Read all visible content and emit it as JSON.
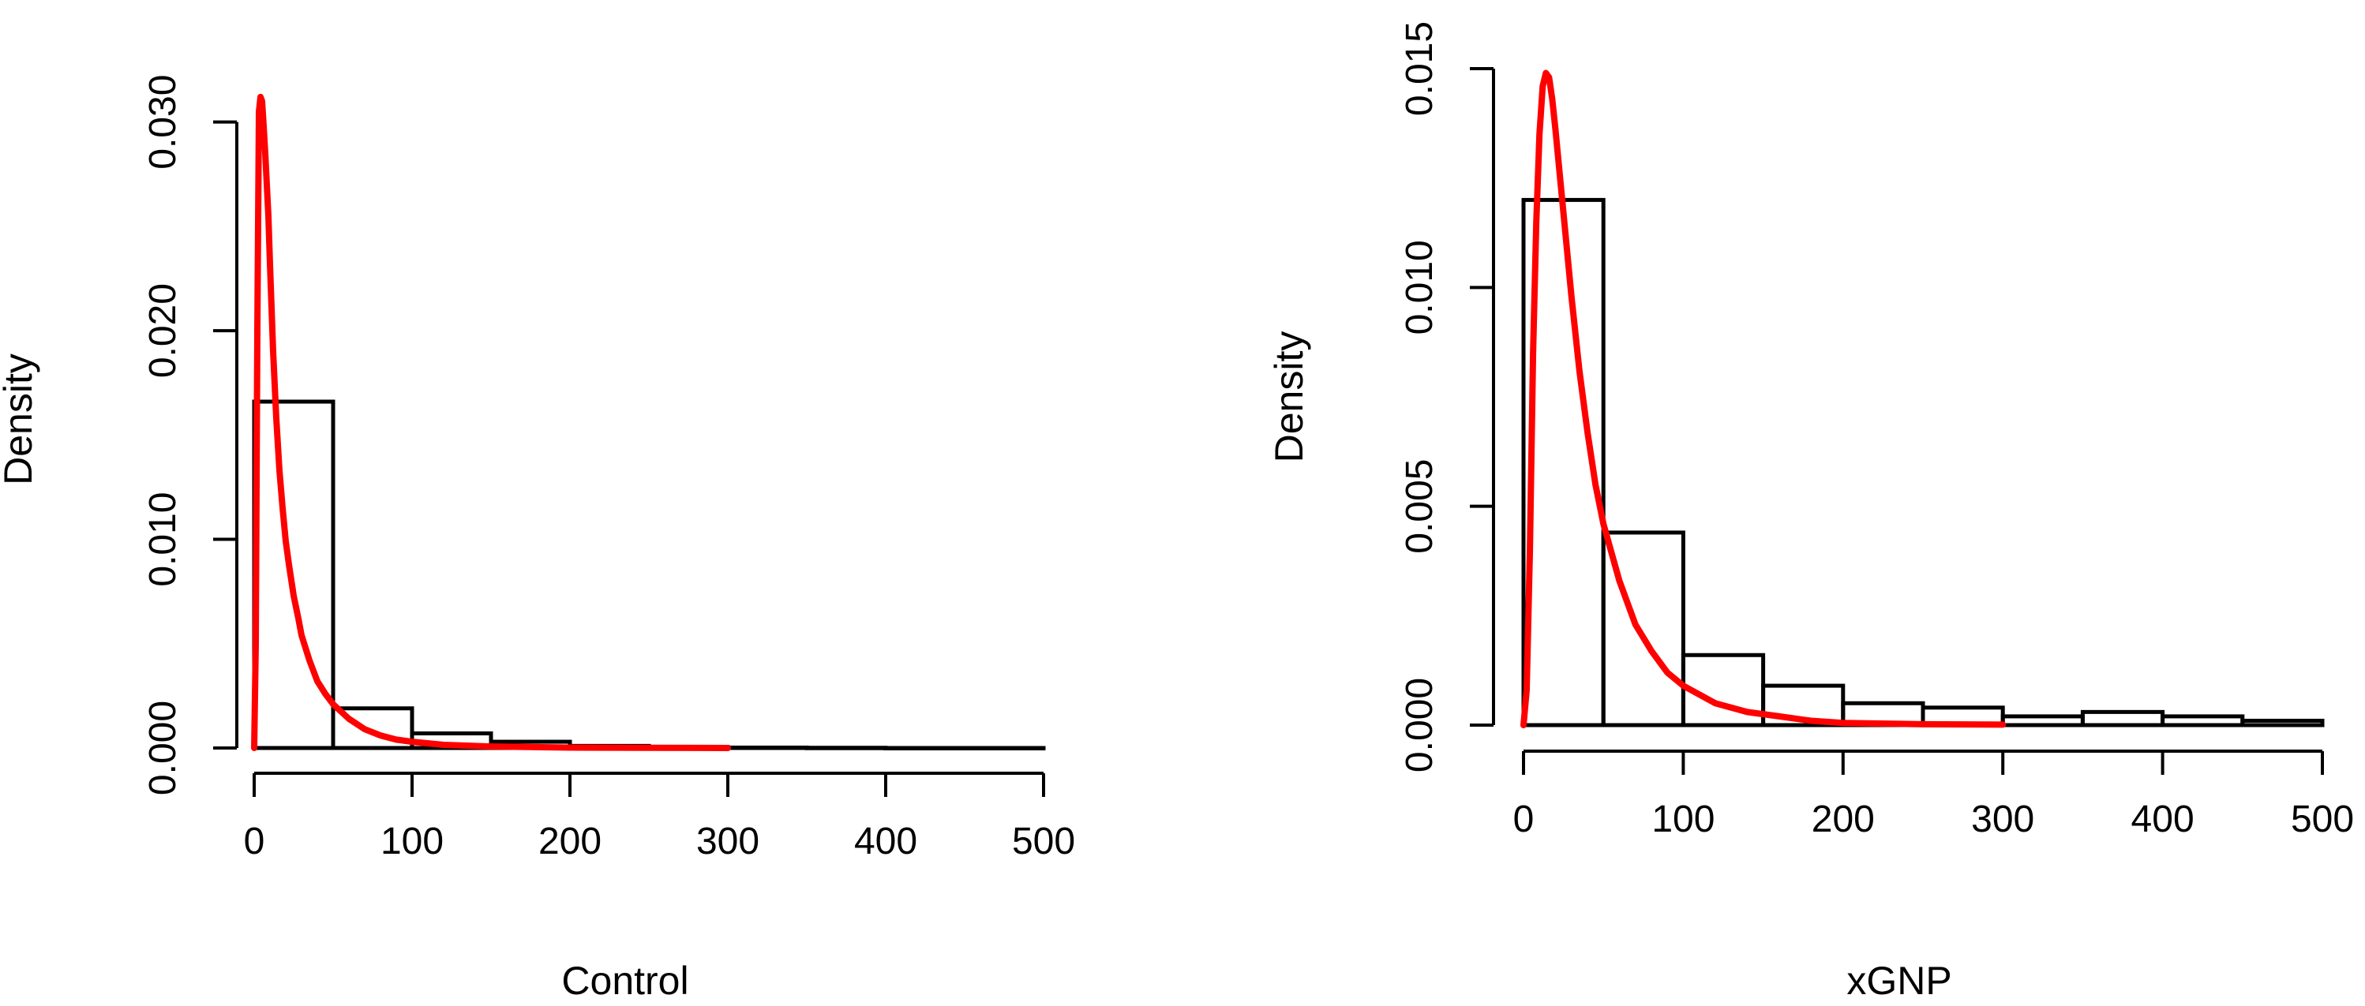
{
  "chart_data": [
    {
      "type": "bar",
      "xlabel": "Control",
      "ylabel": "Density",
      "xlim": [
        0,
        500
      ],
      "ylim": [
        0,
        0.0315
      ],
      "x_ticks": [
        0,
        100,
        200,
        300,
        400,
        500
      ],
      "x_tick_labels": [
        "0",
        "100",
        "200",
        "300",
        "400",
        "500"
      ],
      "y_ticks": [
        0,
        0.01,
        0.02,
        0.03
      ],
      "y_tick_labels": [
        "0.000",
        "0.010",
        "0.020",
        "0.030"
      ],
      "grid": false,
      "bins": [
        {
          "start": 0,
          "end": 50,
          "density": 0.0166
        },
        {
          "start": 50,
          "end": 100,
          "density": 0.0019
        },
        {
          "start": 100,
          "end": 150,
          "density": 0.0007
        },
        {
          "start": 150,
          "end": 200,
          "density": 0.0003
        },
        {
          "start": 200,
          "end": 250,
          "density": 0.0001
        },
        {
          "start": 250,
          "end": 300,
          "density": 5e-05
        },
        {
          "start": 300,
          "end": 350,
          "density": 2e-05
        },
        {
          "start": 350,
          "end": 400,
          "density": 1e-05
        },
        {
          "start": 400,
          "end": 450,
          "density": 0.0
        },
        {
          "start": 450,
          "end": 500,
          "density": 0.0
        }
      ],
      "curve_color": "#ff0000",
      "curve": [
        [
          0,
          0
        ],
        [
          1,
          0.005
        ],
        [
          2,
          0.02
        ],
        [
          3,
          0.0305
        ],
        [
          4,
          0.0312
        ],
        [
          5,
          0.031
        ],
        [
          6,
          0.0298
        ],
        [
          7,
          0.0285
        ],
        [
          8,
          0.027
        ],
        [
          9,
          0.0255
        ],
        [
          10,
          0.0232
        ],
        [
          12,
          0.019
        ],
        [
          14,
          0.0158
        ],
        [
          16,
          0.0133
        ],
        [
          18,
          0.0115
        ],
        [
          20,
          0.0099
        ],
        [
          22,
          0.0088
        ],
        [
          25,
          0.0073
        ],
        [
          28,
          0.0062
        ],
        [
          30,
          0.0054
        ],
        [
          35,
          0.0042
        ],
        [
          40,
          0.0032
        ],
        [
          45,
          0.0026
        ],
        [
          50,
          0.0021
        ],
        [
          60,
          0.0014
        ],
        [
          70,
          0.0009
        ],
        [
          80,
          0.0006
        ],
        [
          90,
          0.0004
        ],
        [
          100,
          0.0003
        ],
        [
          120,
          0.00015
        ],
        [
          150,
          7e-05
        ],
        [
          200,
          2e-05
        ],
        [
          250,
          1e-05
        ],
        [
          300,
          0.0
        ]
      ]
    },
    {
      "type": "bar",
      "xlabel": "xGNP",
      "ylabel": "Density",
      "xlim": [
        0,
        500
      ],
      "ylim": [
        0,
        0.015
      ],
      "x_ticks": [
        0,
        100,
        200,
        300,
        400,
        500
      ],
      "x_tick_labels": [
        "0",
        "100",
        "200",
        "300",
        "400",
        "500"
      ],
      "y_ticks": [
        0,
        0.005,
        0.01,
        0.015
      ],
      "y_tick_labels": [
        "0.000",
        "0.005",
        "0.010",
        "0.015"
      ],
      "grid": false,
      "bins": [
        {
          "start": 0,
          "end": 50,
          "density": 0.012
        },
        {
          "start": 50,
          "end": 100,
          "density": 0.0044
        },
        {
          "start": 100,
          "end": 150,
          "density": 0.0016
        },
        {
          "start": 150,
          "end": 200,
          "density": 0.0009
        },
        {
          "start": 200,
          "end": 250,
          "density": 0.0005
        },
        {
          "start": 250,
          "end": 300,
          "density": 0.0004
        },
        {
          "start": 300,
          "end": 350,
          "density": 0.0002
        },
        {
          "start": 350,
          "end": 400,
          "density": 0.0003
        },
        {
          "start": 400,
          "end": 450,
          "density": 0.0002
        },
        {
          "start": 450,
          "end": 500,
          "density": 0.0001
        }
      ],
      "curve_color": "#ff0000",
      "curve": [
        [
          0,
          0
        ],
        [
          2,
          0.0008
        ],
        [
          4,
          0.004
        ],
        [
          6,
          0.0085
        ],
        [
          8,
          0.0115
        ],
        [
          10,
          0.0135
        ],
        [
          12,
          0.0146
        ],
        [
          14,
          0.0149
        ],
        [
          16,
          0.0148
        ],
        [
          18,
          0.0143
        ],
        [
          20,
          0.0136
        ],
        [
          25,
          0.0117
        ],
        [
          30,
          0.0098
        ],
        [
          35,
          0.0081
        ],
        [
          40,
          0.0067
        ],
        [
          45,
          0.0055
        ],
        [
          50,
          0.0046
        ],
        [
          60,
          0.0033
        ],
        [
          70,
          0.0023
        ],
        [
          80,
          0.0017
        ],
        [
          90,
          0.0012
        ],
        [
          100,
          0.0009
        ],
        [
          120,
          0.0005
        ],
        [
          140,
          0.0003
        ],
        [
          160,
          0.0002
        ],
        [
          180,
          0.0001
        ],
        [
          200,
          5e-05
        ],
        [
          250,
          2e-05
        ],
        [
          300,
          1e-05
        ]
      ]
    }
  ]
}
